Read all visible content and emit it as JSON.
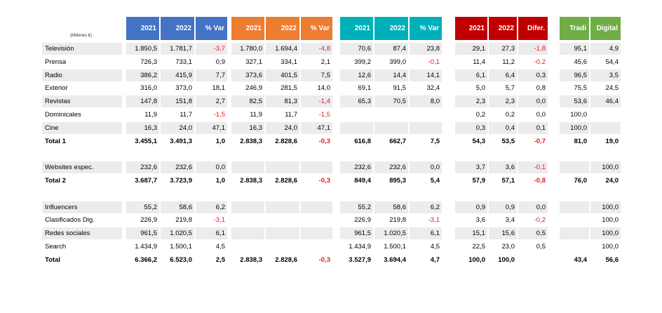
{
  "unit_label": "(Millones €)",
  "groups": [
    {
      "key": "g1",
      "color": "#4472c4",
      "headers": [
        "2021",
        "2022",
        "% Var"
      ]
    },
    {
      "key": "g2",
      "color": "#ed7d31",
      "headers": [
        "2021",
        "2022",
        "% Var"
      ]
    },
    {
      "key": "g3",
      "color": "#00b0b9",
      "headers": [
        "2021",
        "2022",
        "% Var"
      ]
    },
    {
      "key": "g4",
      "color": "#c00000",
      "headers": [
        "2021",
        "2022",
        "Difer."
      ]
    },
    {
      "key": "g5",
      "color": "#70ad47",
      "headers": [
        "Tradi",
        "Digital"
      ]
    }
  ],
  "rows": [
    {
      "label": "Televisión",
      "bold": false,
      "shade": true,
      "g1": [
        "1.850,5",
        "1.781,7",
        "-3,7"
      ],
      "g2": [
        "1.780,0",
        "1.694,4",
        "-4,8"
      ],
      "g3": [
        "70,6",
        "87,4",
        "23,8"
      ],
      "g4": [
        "29,1",
        "27,3",
        "-1,8"
      ],
      "g5": [
        "95,1",
        "4,9"
      ]
    },
    {
      "label": "Prensa",
      "bold": false,
      "shade": false,
      "g1": [
        "726,3",
        "733,1",
        "0,9"
      ],
      "g2": [
        "327,1",
        "334,1",
        "2,1"
      ],
      "g3": [
        "399,2",
        "399,0",
        "-0,1"
      ],
      "g4": [
        "11,4",
        "11,2",
        "-0,2"
      ],
      "g5": [
        "45,6",
        "54,4"
      ]
    },
    {
      "label": "Radio",
      "bold": false,
      "shade": true,
      "g1": [
        "386,2",
        "415,9",
        "7,7"
      ],
      "g2": [
        "373,6",
        "401,5",
        "7,5"
      ],
      "g3": [
        "12,6",
        "14,4",
        "14,1"
      ],
      "g4": [
        "6,1",
        "6,4",
        "0,3"
      ],
      "g5": [
        "96,5",
        "3,5"
      ]
    },
    {
      "label": "Exterior",
      "bold": false,
      "shade": false,
      "g1": [
        "316,0",
        "373,0",
        "18,1"
      ],
      "g2": [
        "246,9",
        "281,5",
        "14,0"
      ],
      "g3": [
        "69,1",
        "91,5",
        "32,4"
      ],
      "g4": [
        "5,0",
        "5,7",
        "0,8"
      ],
      "g5": [
        "75,5",
        "24,5"
      ]
    },
    {
      "label": "Revistas",
      "bold": false,
      "shade": true,
      "g1": [
        "147,8",
        "151,8",
        "2,7"
      ],
      "g2": [
        "82,5",
        "81,3",
        "-1,4"
      ],
      "g3": [
        "65,3",
        "70,5",
        "8,0"
      ],
      "g4": [
        "2,3",
        "2,3",
        "0,0"
      ],
      "g5": [
        "53,6",
        "46,4"
      ]
    },
    {
      "label": "Dominicales",
      "bold": false,
      "shade": false,
      "g1": [
        "11,9",
        "11,7",
        "-1,5"
      ],
      "g2": [
        "11,9",
        "11,7",
        "-1,5"
      ],
      "g3": [
        "",
        "",
        ""
      ],
      "g4": [
        "0,2",
        "0,2",
        "0,0"
      ],
      "g5": [
        "100,0",
        ""
      ]
    },
    {
      "label": "Cine",
      "bold": false,
      "shade": true,
      "g1": [
        "16,3",
        "24,0",
        "47,1"
      ],
      "g2": [
        "16,3",
        "24,0",
        "47,1"
      ],
      "g3": [
        "",
        "",
        ""
      ],
      "g4": [
        "0,3",
        "0,4",
        "0,1"
      ],
      "g5": [
        "100,0",
        ""
      ]
    },
    {
      "label": "Total 1",
      "bold": true,
      "shade": false,
      "g1": [
        "3.455,1",
        "3.491,3",
        "1,0"
      ],
      "g2": [
        "2.838,3",
        "2.828,6",
        "-0,3"
      ],
      "g3": [
        "616,8",
        "662,7",
        "7,5"
      ],
      "g4": [
        "54,3",
        "53,5",
        "-0,7"
      ],
      "g5": [
        "81,0",
        "19,0"
      ]
    },
    {
      "label": "",
      "bold": false,
      "shade": false,
      "g1": [
        "",
        "",
        ""
      ],
      "g2": [
        "",
        "",
        ""
      ],
      "g3": [
        "",
        "",
        ""
      ],
      "g4": [
        "",
        "",
        ""
      ],
      "g5": [
        "",
        ""
      ]
    },
    {
      "label": "Websites espec.",
      "bold": false,
      "shade": true,
      "g1": [
        "232,6",
        "232,6",
        "0,0"
      ],
      "g2": [
        "",
        "",
        ""
      ],
      "g3": [
        "232,6",
        "232,6",
        "0,0"
      ],
      "g4": [
        "3,7",
        "3,6",
        "-0,1"
      ],
      "g5": [
        "",
        "100,0"
      ]
    },
    {
      "label": "Total 2",
      "bold": true,
      "shade": false,
      "g1": [
        "3.687,7",
        "3.723,9",
        "1,0"
      ],
      "g2": [
        "2.838,3",
        "2.828,6",
        "-0,3"
      ],
      "g3": [
        "849,4",
        "895,3",
        "5,4"
      ],
      "g4": [
        "57,9",
        "57,1",
        "-0,8"
      ],
      "g5": [
        "76,0",
        "24,0"
      ]
    },
    {
      "label": "",
      "bold": false,
      "shade": false,
      "g1": [
        "",
        "",
        ""
      ],
      "g2": [
        "",
        "",
        ""
      ],
      "g3": [
        "",
        "",
        ""
      ],
      "g4": [
        "",
        "",
        ""
      ],
      "g5": [
        "",
        ""
      ]
    },
    {
      "label": "Influencers",
      "bold": false,
      "shade": true,
      "g1": [
        "55,2",
        "58,6",
        "6,2"
      ],
      "g2": [
        "",
        "",
        ""
      ],
      "g3": [
        "55,2",
        "58,6",
        "6,2"
      ],
      "g4": [
        "0,9",
        "0,9",
        "0,0"
      ],
      "g5": [
        "",
        "100,0"
      ]
    },
    {
      "label": "Clasificados Dig.",
      "bold": false,
      "shade": false,
      "g1": [
        "226,9",
        "219,8",
        "-3,1"
      ],
      "g2": [
        "",
        "",
        ""
      ],
      "g3": [
        "226,9",
        "219,8",
        "-3,1"
      ],
      "g4": [
        "3,6",
        "3,4",
        "-0,2"
      ],
      "g5": [
        "",
        "100,0"
      ]
    },
    {
      "label": "Redes sociales",
      "bold": false,
      "shade": true,
      "g1": [
        "961,5",
        "1.020,5",
        "6,1"
      ],
      "g2": [
        "",
        "",
        ""
      ],
      "g3": [
        "961,5",
        "1.020,5",
        "6,1"
      ],
      "g4": [
        "15,1",
        "15,6",
        "0,5"
      ],
      "g5": [
        "",
        "100,0"
      ]
    },
    {
      "label": "Search",
      "bold": false,
      "shade": false,
      "g1": [
        "1.434,9",
        "1.500,1",
        "4,5"
      ],
      "g2": [
        "",
        "",
        ""
      ],
      "g3": [
        "1.434,9",
        "1.500,1",
        "4,5"
      ],
      "g4": [
        "22,5",
        "23,0",
        "0,5"
      ],
      "g5": [
        "",
        "100,0"
      ]
    },
    {
      "label": "Total",
      "bold": true,
      "shade": false,
      "g1": [
        "6.366,2",
        "6.523,0",
        "2,5"
      ],
      "g2": [
        "2.838,3",
        "2.828,6",
        "-0,3"
      ],
      "g3": [
        "3.527,9",
        "3.694,4",
        "4,7"
      ],
      "g4": [
        "100,0",
        "100,0",
        ""
      ],
      "g5": [
        "43,4",
        "56,6"
      ]
    }
  ]
}
